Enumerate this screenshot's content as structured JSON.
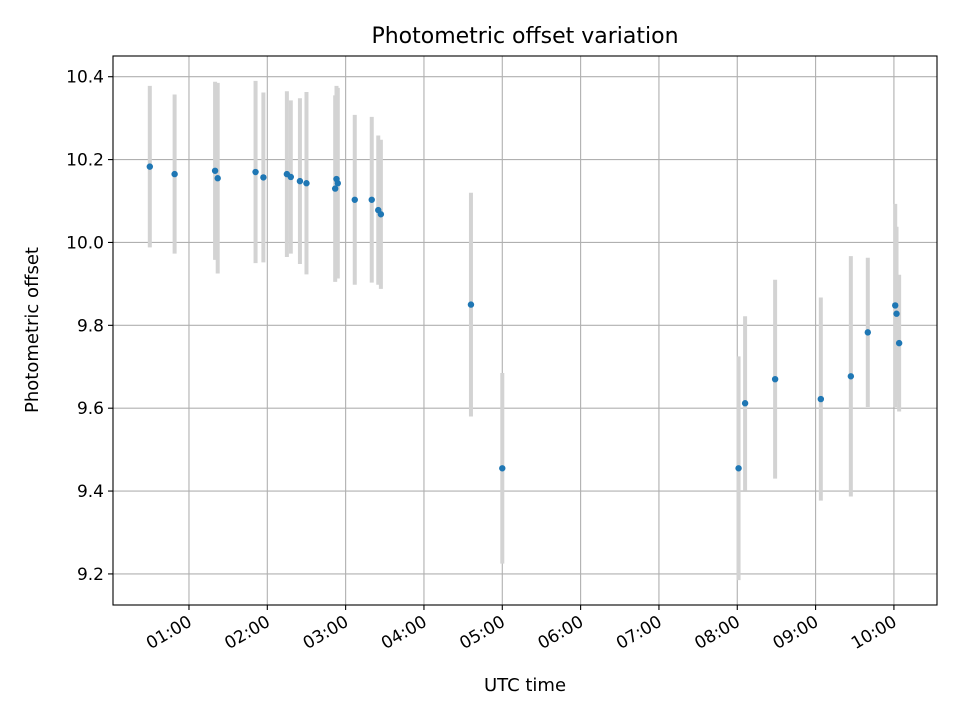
{
  "chart_data": {
    "type": "scatter",
    "title": "Photometric offset variation",
    "xlabel": "UTC time",
    "ylabel": "Photometric offset",
    "x_tick_labels": [
      "01:00",
      "02:00",
      "03:00",
      "04:00",
      "05:00",
      "06:00",
      "07:00",
      "08:00",
      "09:00",
      "10:00"
    ],
    "y_tick_labels": [
      "9.2",
      "9.4",
      "9.6",
      "9.8",
      "10.0",
      "10.2",
      "10.4"
    ],
    "x_ticks_hours": [
      1,
      2,
      3,
      4,
      5,
      6,
      7,
      8,
      9,
      10
    ],
    "y_ticks": [
      9.2,
      9.4,
      9.6,
      9.8,
      10.0,
      10.2,
      10.4
    ],
    "xlim_hours": [
      0.03,
      10.55
    ],
    "ylim": [
      9.125,
      10.45
    ],
    "grid": true,
    "x_format": "HH:MM",
    "colors": {
      "point": "#1f77b4",
      "errorbar": "#d3d3d3",
      "grid": "#b0b0b0"
    },
    "series": [
      {
        "points": [
          {
            "t": "00:30",
            "y": 10.183,
            "err": 0.195
          },
          {
            "t": "00:49",
            "y": 10.165,
            "err": 0.192
          },
          {
            "t": "01:20",
            "y": 10.173,
            "err": 0.215
          },
          {
            "t": "01:22",
            "y": 10.155,
            "err": 0.23
          },
          {
            "t": "01:51",
            "y": 10.17,
            "err": 0.22
          },
          {
            "t": "01:57",
            "y": 10.157,
            "err": 0.205
          },
          {
            "t": "02:15",
            "y": 10.165,
            "err": 0.2
          },
          {
            "t": "02:18",
            "y": 10.158,
            "err": 0.185
          },
          {
            "t": "02:25",
            "y": 10.148,
            "err": 0.2
          },
          {
            "t": "02:30",
            "y": 10.143,
            "err": 0.22
          },
          {
            "t": "02:52",
            "y": 10.13,
            "err": 0.225
          },
          {
            "t": "02:53",
            "y": 10.153,
            "err": 0.225
          },
          {
            "t": "02:54",
            "y": 10.143,
            "err": 0.23
          },
          {
            "t": "03:07",
            "y": 10.103,
            "err": 0.205
          },
          {
            "t": "03:20",
            "y": 10.103,
            "err": 0.2
          },
          {
            "t": "03:25",
            "y": 10.078,
            "err": 0.18
          },
          {
            "t": "03:27",
            "y": 10.068,
            "err": 0.18
          },
          {
            "t": "04:36",
            "y": 9.85,
            "err": 0.27
          },
          {
            "t": "05:00",
            "y": 9.455,
            "err": 0.23
          },
          {
            "t": "08:01",
            "y": 9.455,
            "err": 0.27
          },
          {
            "t": "08:06",
            "y": 9.612,
            "err": 0.21
          },
          {
            "t": "08:29",
            "y": 9.67,
            "err": 0.24
          },
          {
            "t": "09:04",
            "y": 9.622,
            "err": 0.245
          },
          {
            "t": "09:27",
            "y": 9.677,
            "err": 0.29
          },
          {
            "t": "09:40",
            "y": 9.783,
            "err": 0.18
          },
          {
            "t": "10:01",
            "y": 9.848,
            "err": 0.245
          },
          {
            "t": "10:02",
            "y": 9.828,
            "err": 0.21
          },
          {
            "t": "10:04",
            "y": 9.757,
            "err": 0.165
          }
        ]
      }
    ]
  }
}
